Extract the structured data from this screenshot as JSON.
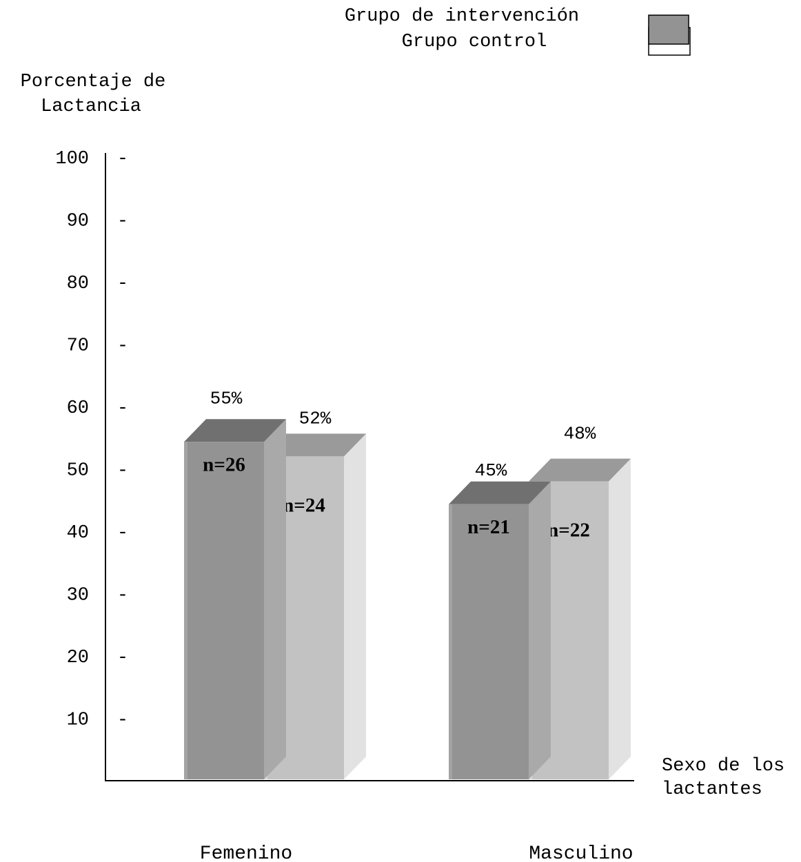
{
  "chart_data": {
    "type": "bar",
    "title": "",
    "ylabel_line1": "Porcentaje de",
    "ylabel_line2": "Lactancia",
    "xlabel_line1": "Sexo de los",
    "xlabel_line2": "lactantes",
    "categories": [
      "Femenino",
      "Masculino"
    ],
    "series": [
      {
        "name": "Grupo de intervención",
        "values": [
          55,
          45
        ],
        "labels": [
          "55%",
          "45%"
        ],
        "n": [
          "n=26",
          "n=21"
        ],
        "color": "#939393",
        "top_color": "#707070",
        "side_color": "#a9a9a9"
      },
      {
        "name": "Grupo control",
        "values": [
          52,
          48
        ],
        "labels": [
          "52%",
          "48%"
        ],
        "n": [
          "n=24",
          "n=22"
        ],
        "color": "#c2c2c2",
        "top_color": "#9a9a9a",
        "side_color": "#e2e2e2"
      }
    ],
    "yticks": [
      10,
      20,
      30,
      40,
      50,
      60,
      70,
      80,
      90,
      100
    ],
    "tick_mark": "-",
    "ylim": [
      0,
      100
    ],
    "legend_position": "top-right",
    "grid": false
  }
}
